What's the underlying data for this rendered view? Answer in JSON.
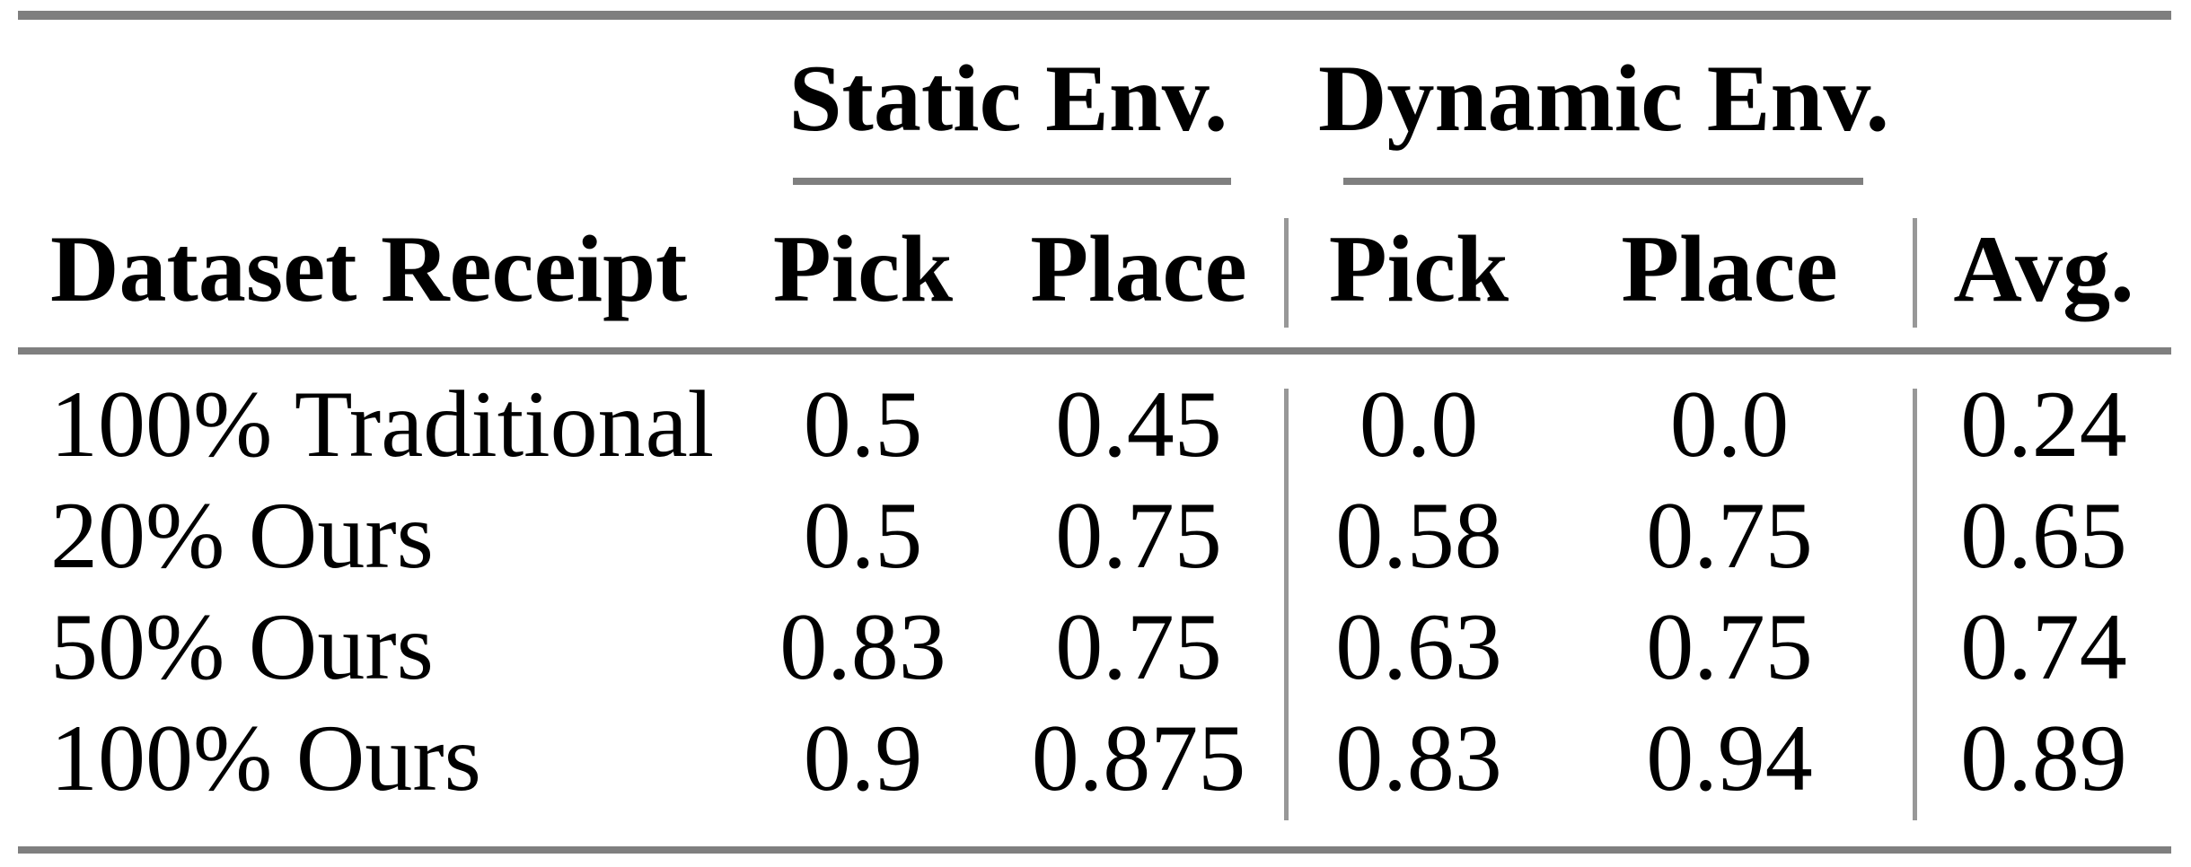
{
  "table": {
    "group_headers": [
      {
        "label": "Static Env."
      },
      {
        "label": "Dynamic Env."
      }
    ],
    "columns": [
      "Dataset Receipt",
      "Pick",
      "Place",
      "Pick",
      "Place",
      "Avg."
    ],
    "rows": [
      {
        "label": "100% Traditional",
        "values": [
          "0.5",
          "0.45",
          "0.0",
          "0.0",
          "0.24"
        ]
      },
      {
        "label": "20% Ours",
        "values": [
          "0.5",
          "0.75",
          "0.58",
          "0.75",
          "0.65"
        ]
      },
      {
        "label": "50% Ours",
        "values": [
          "0.83",
          "0.75",
          "0.63",
          "0.75",
          "0.74"
        ]
      },
      {
        "label": "100% Ours",
        "values": [
          "0.9",
          "0.875",
          "0.83",
          "0.94",
          "0.89"
        ]
      }
    ],
    "colors": {
      "rule": "#7f7f7f",
      "vertical_line": "#989898",
      "text": "#000000",
      "background": "#ffffff"
    }
  }
}
